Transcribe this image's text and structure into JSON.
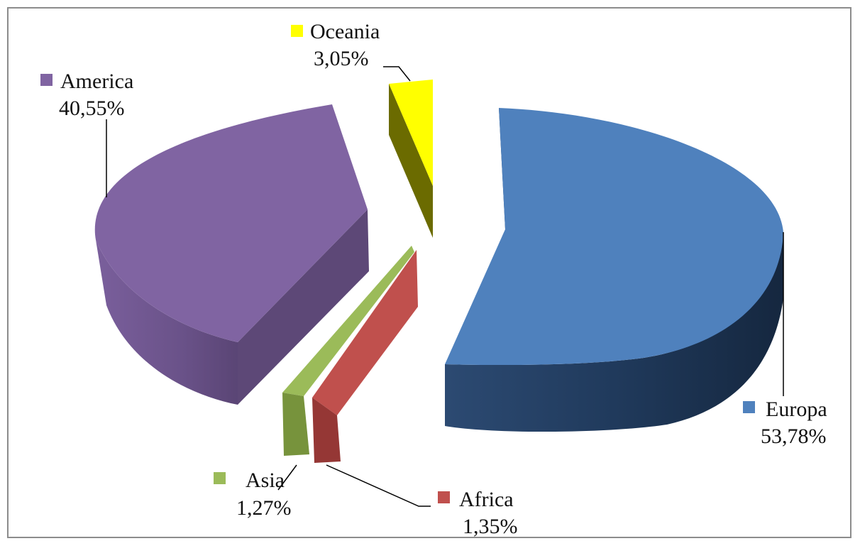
{
  "chart_data": {
    "type": "pie",
    "style": "3d-exploded",
    "title": "",
    "slices": [
      {
        "label": "Europa",
        "value": 53.78,
        "value_text": "53,78%",
        "color": "#4f81bd"
      },
      {
        "label": "Africa",
        "value": 1.35,
        "value_text": "1,35%",
        "color": "#c0504d"
      },
      {
        "label": "Asia",
        "value": 1.27,
        "value_text": "1,27%",
        "color": "#9bbb59"
      },
      {
        "label": "America",
        "value": 40.55,
        "value_text": "40,55%",
        "color": "#8064a2"
      },
      {
        "label": "Oceania",
        "value": 3.05,
        "value_text": "3,05%",
        "color": "#ffff00"
      }
    ],
    "legend": "per-slice labels with colored markers"
  }
}
